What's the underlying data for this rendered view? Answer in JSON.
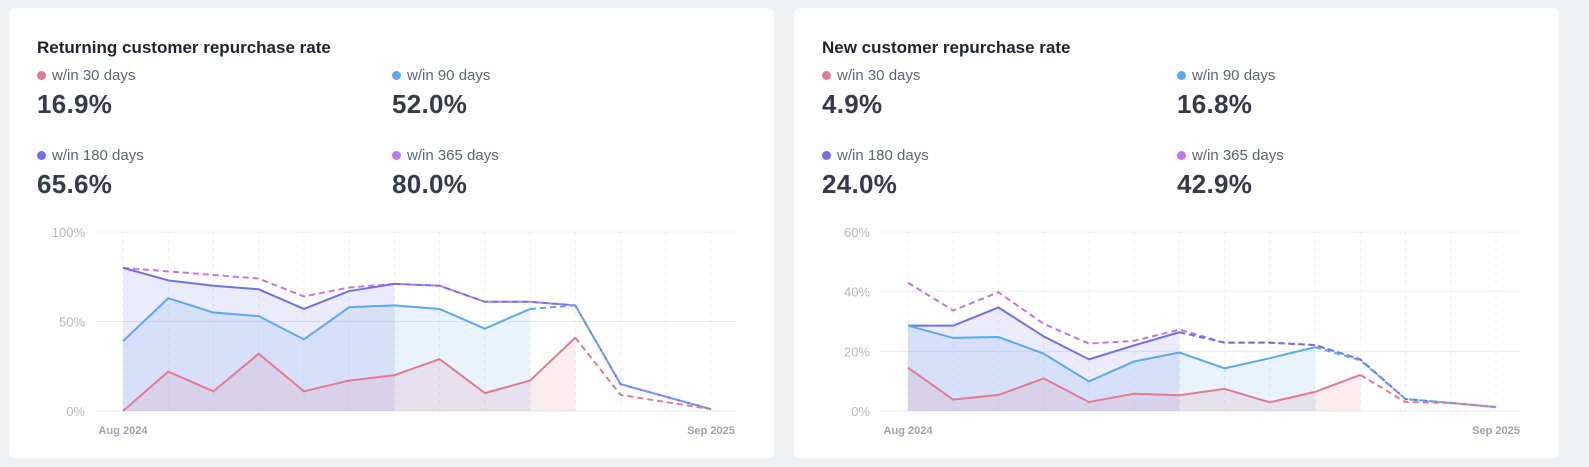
{
  "colors": {
    "w30": "#e27a92",
    "w90": "#5aa9f0",
    "w180": "#6f72e3",
    "w365": "#c275ec"
  },
  "cards": [
    {
      "title": "Returning customer repurchase rate",
      "metrics": [
        {
          "label": "w/in 30 days",
          "value": "16.9%"
        },
        {
          "label": "w/in 90 days",
          "value": "52.0%"
        },
        {
          "label": "w/in 180 days",
          "value": "65.6%"
        },
        {
          "label": "w/in 365 days",
          "value": "80.0%"
        }
      ]
    },
    {
      "title": "New customer repurchase rate",
      "metrics": [
        {
          "label": "w/in 30 days",
          "value": "4.9%"
        },
        {
          "label": "w/in 90 days",
          "value": "16.8%"
        },
        {
          "label": "w/in 180 days",
          "value": "24.0%"
        },
        {
          "label": "w/in 365 days",
          "value": "42.9%"
        }
      ]
    }
  ],
  "chart_data": [
    {
      "type": "line",
      "title": "Returning customer repurchase rate",
      "x": [
        "Aug 2024",
        "Sep 2024",
        "Oct 2024",
        "Nov 2024",
        "Dec 2024",
        "Jan 2025",
        "Feb 2025",
        "Mar 2025",
        "Apr 2025",
        "May 2025",
        "Jun 2025",
        "Jul 2025",
        "Aug 2025",
        "Sep 2025"
      ],
      "x_tick_labels": [
        "Aug 2024",
        "Sep 2025"
      ],
      "y_ticks": [
        0,
        50,
        100
      ],
      "y_tick_labels": [
        "0%",
        "50%",
        "100%"
      ],
      "ylim": [
        0,
        100
      ],
      "series": [
        {
          "name": "w/in 30 days",
          "key": "w30",
          "values": [
            0,
            22,
            11,
            32,
            11,
            17,
            20,
            29,
            10,
            17,
            41,
            9,
            5,
            1
          ],
          "solid_to": 10
        },
        {
          "name": "w/in 90 days",
          "key": "w90",
          "values": [
            39,
            63,
            55,
            53,
            40,
            58,
            59,
            57,
            46,
            57,
            59,
            15,
            8,
            1
          ],
          "solid_to": 9
        },
        {
          "name": "w/in 180 days",
          "key": "w180",
          "values": [
            80,
            73,
            70,
            68,
            57,
            67,
            71,
            70,
            61,
            61,
            59,
            15,
            8,
            1
          ],
          "solid_to": 6
        },
        {
          "name": "w/in 365 days",
          "key": "w365",
          "values": [
            80,
            78,
            76,
            74,
            64,
            69,
            71,
            70,
            61,
            61,
            59,
            15,
            8,
            1
          ],
          "solid_to": 0
        }
      ]
    },
    {
      "type": "line",
      "title": "New customer repurchase rate",
      "x": [
        "Aug 2024",
        "Sep 2024",
        "Oct 2024",
        "Nov 2024",
        "Dec 2024",
        "Jan 2025",
        "Feb 2025",
        "Mar 2025",
        "Apr 2025",
        "May 2025",
        "Jun 2025",
        "Jul 2025",
        "Aug 2025",
        "Sep 2025"
      ],
      "x_tick_labels": [
        "Aug 2024",
        "Sep 2025"
      ],
      "y_ticks": [
        0,
        20,
        40,
        60
      ],
      "y_tick_labels": [
        "0%",
        "20%",
        "40%",
        "60%"
      ],
      "ylim": [
        0,
        60
      ],
      "series": [
        {
          "name": "w/in 30 days",
          "key": "w30",
          "values": [
            14.5,
            3.8,
            5.4,
            10.9,
            3,
            5.8,
            5.3,
            7.4,
            2.9,
            6.4,
            12.1,
            3,
            2.7,
            1.3
          ],
          "solid_to": 10
        },
        {
          "name": "w/in 90 days",
          "key": "w90",
          "values": [
            28.6,
            24.5,
            24.8,
            19.2,
            9.9,
            16.6,
            19.6,
            14.3,
            17.7,
            21.4,
            17,
            4,
            2.7,
            1.3
          ],
          "solid_to": 9
        },
        {
          "name": "w/in 180 days",
          "key": "w180",
          "values": [
            28.6,
            28.6,
            34.7,
            25,
            17.3,
            22,
            26.4,
            22.9,
            22.9,
            22.1,
            17.3,
            4,
            2.7,
            1.3
          ],
          "solid_to": 6
        },
        {
          "name": "w/in 365 days",
          "key": "w365",
          "values": [
            43,
            33.7,
            39.8,
            29.2,
            22.6,
            23.5,
            27.3,
            22.9,
            22.9,
            22.1,
            17.3,
            4,
            2.7,
            1.3
          ],
          "solid_to": 0
        }
      ]
    }
  ]
}
